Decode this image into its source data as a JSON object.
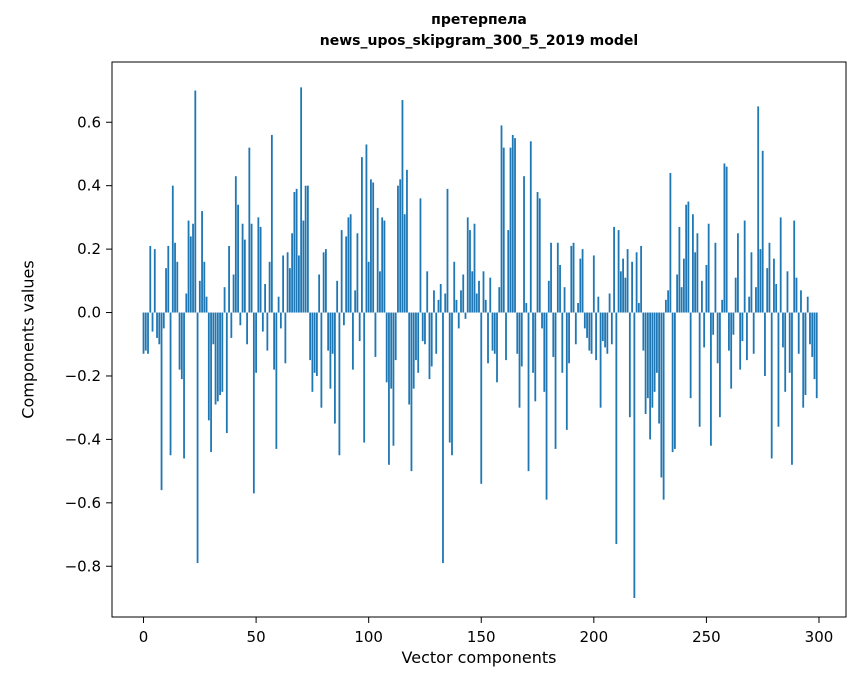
{
  "chart": {
    "title_line1": "претерпела",
    "title_line2": "news_upos_skipgram_300_5_2019 model",
    "xlabel": "Vector components",
    "ylabel": "Components values"
  },
  "chart_data": {
    "type": "bar",
    "title": "претерпела\nnews_upos_skipgram_300_5_2019 model",
    "xlabel": "Vector components",
    "ylabel": "Components values",
    "bar_color": "#1f77b4",
    "axis_color": "#000000",
    "grid": false,
    "legend": "none",
    "xlim": [
      -14,
      312
    ],
    "ylim": [
      -0.96,
      0.79
    ],
    "xticks": [
      0,
      50,
      100,
      150,
      200,
      250,
      300
    ],
    "xtick_labels": [
      "0",
      "50",
      "100",
      "150",
      "200",
      "250",
      "300"
    ],
    "yticks": [
      0.6,
      0.4,
      0.2,
      0.0,
      -0.2,
      -0.4,
      -0.6,
      -0.8
    ],
    "ytick_labels": [
      "0.6",
      "0.4",
      "0.2",
      "0.0",
      "−0.2",
      "−0.4",
      "−0.6",
      "−0.8"
    ],
    "x_start": 0,
    "values": [
      -0.13,
      -0.12,
      -0.13,
      0.21,
      -0.06,
      0.2,
      -0.08,
      -0.1,
      -0.56,
      -0.05,
      0.14,
      0.21,
      -0.45,
      0.4,
      0.22,
      0.16,
      -0.18,
      -0.21,
      -0.46,
      0.06,
      0.29,
      0.24,
      0.28,
      0.7,
      -0.79,
      0.1,
      0.32,
      0.16,
      0.05,
      -0.34,
      -0.44,
      -0.1,
      -0.29,
      -0.28,
      -0.26,
      -0.25,
      0.08,
      -0.38,
      0.21,
      -0.08,
      0.12,
      0.43,
      0.34,
      -0.04,
      0.28,
      0.23,
      -0.1,
      0.52,
      0.28,
      -0.57,
      -0.19,
      0.3,
      0.27,
      -0.06,
      0.09,
      -0.12,
      0.16,
      0.56,
      -0.18,
      -0.43,
      0.05,
      -0.05,
      0.18,
      -0.16,
      0.19,
      0.14,
      0.25,
      0.38,
      0.39,
      0.18,
      0.71,
      0.29,
      0.4,
      0.4,
      -0.15,
      -0.25,
      -0.19,
      -0.2,
      0.12,
      -0.3,
      0.19,
      0.2,
      -0.12,
      -0.24,
      -0.13,
      -0.35,
      0.1,
      -0.45,
      0.26,
      -0.04,
      0.24,
      0.3,
      0.31,
      -0.18,
      0.07,
      0.25,
      -0.09,
      0.49,
      -0.41,
      0.53,
      0.16,
      0.42,
      0.41,
      -0.14,
      0.33,
      0.13,
      0.3,
      0.29,
      -0.22,
      -0.48,
      -0.24,
      -0.42,
      -0.15,
      0.4,
      0.42,
      0.67,
      0.31,
      0.45,
      -0.29,
      -0.5,
      -0.24,
      -0.15,
      -0.19,
      0.36,
      -0.09,
      -0.1,
      0.13,
      -0.21,
      -0.17,
      0.07,
      -0.13,
      0.04,
      0.09,
      -0.79,
      0.06,
      0.39,
      -0.41,
      -0.45,
      0.16,
      0.04,
      -0.05,
      0.07,
      0.12,
      -0.02,
      0.3,
      0.26,
      0.13,
      0.28,
      0.06,
      0.1,
      -0.54,
      0.13,
      0.04,
      -0.16,
      0.11,
      -0.12,
      -0.13,
      -0.22,
      0.08,
      0.59,
      0.52,
      -0.15,
      0.26,
      0.52,
      0.56,
      0.55,
      -0.13,
      -0.3,
      -0.17,
      0.43,
      0.03,
      -0.5,
      0.54,
      -0.19,
      -0.28,
      0.38,
      0.36,
      -0.05,
      -0.25,
      -0.59,
      0.1,
      0.22,
      -0.14,
      -0.43,
      0.22,
      0.15,
      -0.19,
      0.08,
      -0.37,
      -0.16,
      0.21,
      0.22,
      -0.1,
      0.03,
      0.17,
      0.2,
      -0.05,
      -0.08,
      -0.12,
      -0.13,
      0.18,
      -0.15,
      0.05,
      -0.3,
      -0.09,
      -0.11,
      -0.13,
      0.06,
      -0.1,
      0.27,
      -0.73,
      0.26,
      0.13,
      0.17,
      0.11,
      0.2,
      -0.33,
      0.16,
      -0.9,
      0.19,
      0.03,
      0.21,
      -0.12,
      -0.32,
      -0.27,
      -0.4,
      -0.3,
      -0.25,
      -0.19,
      -0.35,
      -0.52,
      -0.59,
      0.04,
      0.07,
      0.44,
      -0.44,
      -0.43,
      0.12,
      0.27,
      0.08,
      0.17,
      0.34,
      0.35,
      -0.27,
      0.31,
      0.19,
      0.25,
      -0.36,
      0.1,
      -0.11,
      0.15,
      0.28,
      -0.42,
      -0.07,
      0.22,
      -0.16,
      -0.33,
      0.04,
      0.47,
      0.46,
      -0.12,
      -0.24,
      -0.07,
      0.11,
      0.25,
      -0.18,
      -0.09,
      0.29,
      -0.15,
      0.05,
      0.19,
      -0.13,
      0.08,
      0.65,
      0.2,
      0.51,
      -0.2,
      0.14,
      0.22,
      -0.46,
      0.17,
      0.09,
      -0.36,
      0.3,
      -0.11,
      -0.25,
      0.13,
      -0.19,
      -0.48,
      0.29,
      0.11,
      -0.13,
      0.07,
      -0.3,
      -0.26,
      0.05,
      -0.1,
      -0.14,
      -0.21,
      -0.27
    ]
  }
}
